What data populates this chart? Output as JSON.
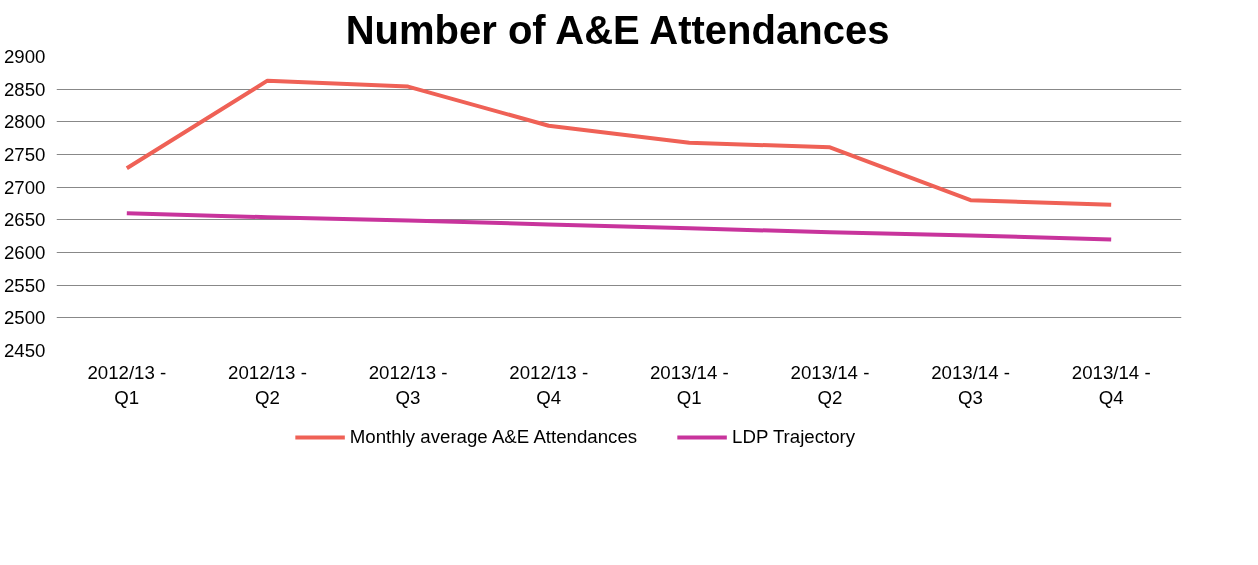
{
  "chart_data": {
    "type": "line",
    "title": "Number of A&E Attendances",
    "categories": [
      "2012/13 -\nQ1",
      "2012/13 -\nQ2",
      "2012/13 -\nQ3",
      "2012/13 -\nQ4",
      "2013/14 -\nQ1",
      "2013/14 -\nQ2",
      "2013/14 -\nQ3",
      "2013/14 -\nQ4"
    ],
    "series": [
      {
        "name": "Monthly average A&E Attendances",
        "color": "#ef6156",
        "values": [
          2729,
          2863,
          2854,
          2794,
          2768,
          2761,
          2680,
          2673
        ]
      },
      {
        "name": "LDP Trajectory",
        "color": "#c8349c",
        "values": [
          2660,
          2654,
          2649,
          2643,
          2637,
          2631,
          2626,
          2620
        ]
      }
    ],
    "ylim": [
      2450,
      2900
    ],
    "yticks": [
      2450,
      2500,
      2550,
      2600,
      2650,
      2700,
      2750,
      2800,
      2850,
      2900
    ],
    "grid": "y",
    "legend": "bottom",
    "marker": "none",
    "line_style": "solid"
  }
}
